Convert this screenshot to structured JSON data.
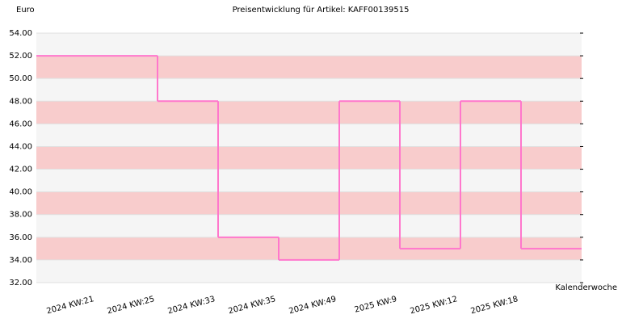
{
  "chart_data": {
    "type": "step",
    "title": "Preisentwicklung für Artikel: KAFF00139515",
    "y_label": "Euro",
    "x_label": "Kalenderwoche",
    "categories": [
      "2024 KW:21",
      "2024 KW:25",
      "2024 KW:33",
      "2024 KW:35",
      "2024 KW:49",
      "2025 KW:9",
      "2025 KW:12",
      "2025 KW:18"
    ],
    "values": [
      52,
      48,
      36,
      34,
      48,
      35,
      48,
      35
    ],
    "color": "#ff77cc",
    "ylim": [
      32,
      54
    ],
    "yticks": [
      {
        "value": 32,
        "label": "32.00"
      },
      {
        "value": 34,
        "label": "34.00"
      },
      {
        "value": 36,
        "label": "36.00"
      },
      {
        "value": 38,
        "label": "38.00"
      },
      {
        "value": 40,
        "label": "40.00"
      },
      {
        "value": 42,
        "label": "42.00"
      },
      {
        "value": 44,
        "label": "44.00"
      },
      {
        "value": 46,
        "label": "46.00"
      },
      {
        "value": 48,
        "label": "48.00"
      },
      {
        "value": 50,
        "label": "50.00"
      },
      {
        "value": 52,
        "label": "52.00"
      },
      {
        "value": 54,
        "label": "54.00"
      }
    ]
  }
}
